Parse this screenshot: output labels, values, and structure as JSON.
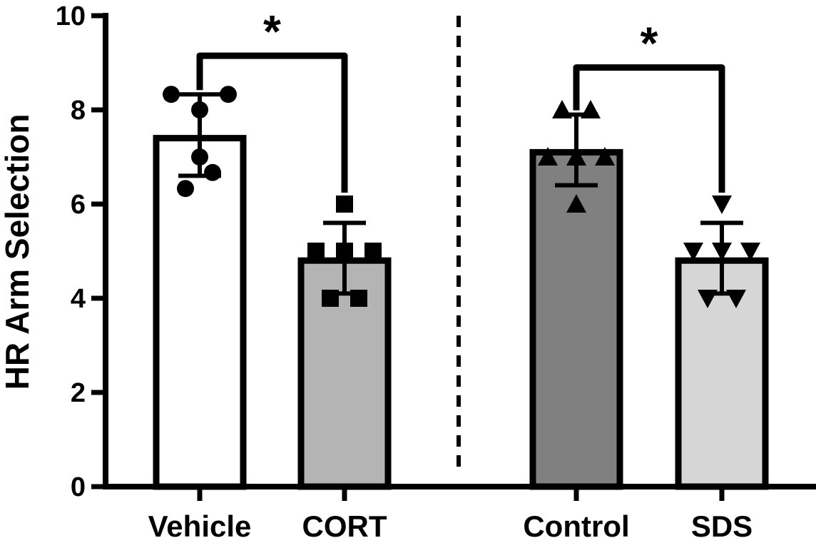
{
  "chart_data": {
    "type": "bar",
    "title": "",
    "xlabel": "",
    "ylabel": "HR Arm Selection",
    "ylim": [
      0,
      10
    ],
    "yticks": [
      0,
      2,
      4,
      6,
      8,
      10
    ],
    "yticks_labels": [
      "0",
      "2",
      "4",
      "6",
      "8",
      "10"
    ],
    "categories": [
      "Vehicle",
      "CORT",
      "Control",
      "SDS"
    ],
    "groups": [
      {
        "name": "Vehicle",
        "mean": 7.4,
        "sd_upper": 8.33,
        "sd_lower": 6.6,
        "fill": "#ffffff",
        "marker": "circle",
        "points": [
          8.33,
          8.33,
          8.0,
          7.0,
          6.67,
          6.33
        ]
      },
      {
        "name": "CORT",
        "mean": 4.8,
        "sd_upper": 5.6,
        "sd_lower": 4.1,
        "fill": "#b4b4b4",
        "marker": "square",
        "points": [
          6.0,
          5.0,
          5.0,
          5.0,
          4.0,
          4.0
        ]
      },
      {
        "name": "Control",
        "mean": 7.1,
        "sd_upper": 7.9,
        "sd_lower": 6.4,
        "fill": "#808080",
        "marker": "triangle-up",
        "points": [
          8.0,
          8.0,
          7.0,
          7.0,
          7.0,
          6.0
        ]
      },
      {
        "name": "SDS",
        "mean": 4.8,
        "sd_upper": 5.6,
        "sd_lower": 4.1,
        "fill": "#d6d6d6",
        "marker": "triangle-down",
        "points": [
          6.0,
          5.0,
          5.0,
          5.0,
          4.0,
          4.0
        ]
      }
    ],
    "comparisons": [
      {
        "from": "Vehicle",
        "to": "CORT",
        "label": "*",
        "level": 9.15
      },
      {
        "from": "Control",
        "to": "SDS",
        "label": "*",
        "level": 8.9
      }
    ],
    "separator": "dashed-vertical"
  }
}
